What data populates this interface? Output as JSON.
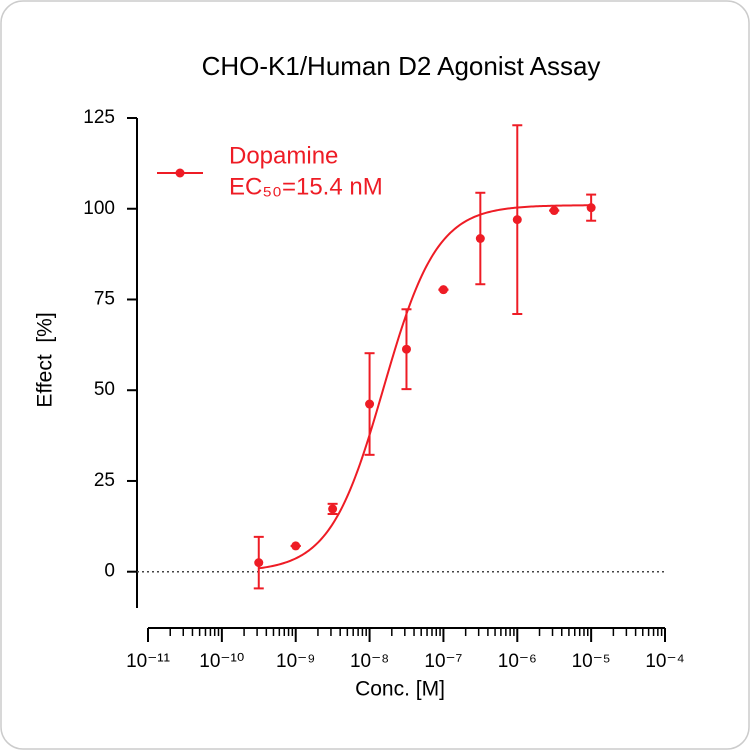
{
  "chart_data": {
    "type": "scatter",
    "title": "CHO-K1/Human D2 Agonist Assay",
    "x_label": "Conc. [M]",
    "y_label": "Effect  [%]",
    "xscale": "log",
    "xlim": [
      1e-11,
      0.0001
    ],
    "xticks": [
      {
        "value": 1e-11,
        "label": "10⁻¹¹"
      },
      {
        "value": 1e-10,
        "label": "10⁻¹⁰"
      },
      {
        "value": 1e-09,
        "label": "10⁻⁹"
      },
      {
        "value": 1e-08,
        "label": "10⁻⁸"
      },
      {
        "value": 1e-07,
        "label": "10⁻⁷"
      },
      {
        "value": 1e-06,
        "label": "10⁻⁶"
      },
      {
        "value": 1e-05,
        "label": "10⁻⁵"
      },
      {
        "value": 0.0001,
        "label": "10⁻⁴"
      }
    ],
    "ylim": [
      -10,
      125
    ],
    "yticks": [
      0,
      25,
      50,
      75,
      100,
      125
    ],
    "zero_line": true,
    "legend": "top-left",
    "series": [
      {
        "name": "Dopamine",
        "annotation": "EC₅₀=15.4 nM",
        "color": "#ee1c25",
        "x": [
          3.16e-10,
          1e-09,
          3.16e-09,
          1e-08,
          3.16e-08,
          1e-07,
          3.16e-07,
          1e-06,
          3.16e-06,
          1e-05
        ],
        "values": [
          2.5,
          7.1,
          17.3,
          46.2,
          61.3,
          77.7,
          91.8,
          97,
          99.5,
          100.3
        ],
        "errors": [
          7.1,
          0,
          1.4,
          14,
          11,
          0,
          12.6,
          26,
          0,
          3.6
        ],
        "fit": {
          "bottom": 0,
          "top": 101,
          "ec50": 1.54e-08,
          "hill": 1.2
        }
      }
    ]
  }
}
